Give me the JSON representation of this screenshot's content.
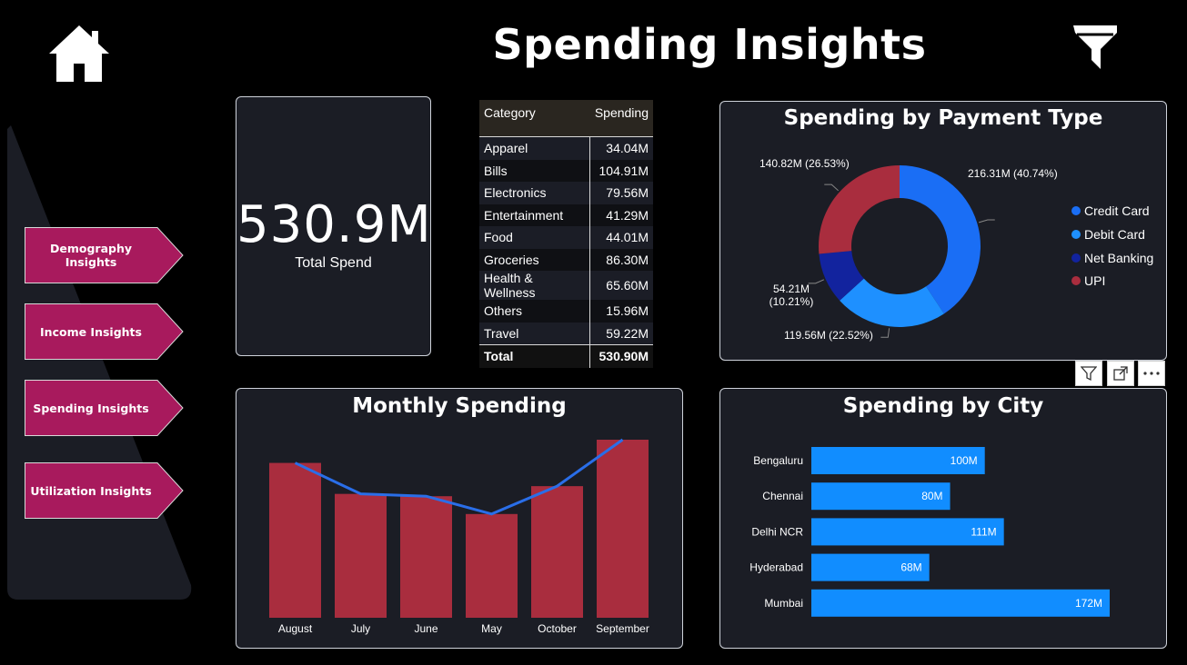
{
  "page": {
    "title": "Spending Insights"
  },
  "icons": {
    "home": "home-icon",
    "filter": "filter-icon",
    "visual_filter": "funnel-icon",
    "focus": "focus-mode-icon",
    "more": "more-options-icon"
  },
  "nav": {
    "items": [
      {
        "label": "Demography Insights"
      },
      {
        "label": "Income Insights"
      },
      {
        "label": "Spending Insights"
      },
      {
        "label": "Utilization Insights"
      }
    ]
  },
  "kpi": {
    "value": "530.9M",
    "label": "Total Spend"
  },
  "category_table": {
    "headers": [
      "Category",
      "Spending"
    ],
    "rows": [
      {
        "category": "Apparel",
        "spending": "34.04M"
      },
      {
        "category": "Bills",
        "spending": "104.91M"
      },
      {
        "category": "Electronics",
        "spending": "79.56M"
      },
      {
        "category": "Entertainment",
        "spending": "41.29M"
      },
      {
        "category": "Food",
        "spending": "44.01M"
      },
      {
        "category": "Groceries",
        "spending": "86.30M"
      },
      {
        "category": "Health & Wellness",
        "spending": "65.60M"
      },
      {
        "category": "Others",
        "spending": "15.96M"
      },
      {
        "category": "Travel",
        "spending": "59.22M"
      }
    ],
    "total": {
      "category": "Total",
      "spending": "530.90M"
    }
  },
  "colors": {
    "bar_red": "#a92d3e",
    "line_blue": "#2a6ee8",
    "city_bar": "#118dff",
    "accent_nav": "#a81a5d"
  },
  "chart_data": [
    {
      "type": "pie",
      "title": "Spending by Payment Type",
      "legend_position": "right",
      "slices": [
        {
          "name": "Credit Card",
          "value": 216.31,
          "label": "216.31M (40.74%)",
          "color": "#1a6ef5"
        },
        {
          "name": "Debit Card",
          "value": 119.56,
          "label": "119.56M (22.52%)",
          "color": "#1e90ff"
        },
        {
          "name": "Net Banking",
          "value": 54.21,
          "label": "54.21M\n(10.21%)",
          "color": "#12239e"
        },
        {
          "name": "UPI",
          "value": 140.82,
          "label": "140.82M (26.53%)",
          "color": "#a92d3e"
        }
      ]
    },
    {
      "type": "bar",
      "title": "Monthly Spending",
      "categories": [
        "August",
        "July",
        "June",
        "May",
        "October",
        "September"
      ],
      "values": [
        100,
        80,
        78.5,
        67,
        85,
        115
      ],
      "line_values": [
        100,
        80,
        78.5,
        67,
        85,
        115
      ],
      "ylim": [
        0,
        115
      ],
      "grid": false
    },
    {
      "type": "bar",
      "orientation": "horizontal",
      "title": "Spending by City",
      "categories": [
        "Bengaluru",
        "Chennai",
        "Delhi NCR",
        "Hyderabad",
        "Mumbai"
      ],
      "values": [
        100,
        80,
        111,
        68,
        172
      ],
      "data_labels": [
        "100M",
        "80M",
        "111M",
        "68M",
        "172M"
      ],
      "xlim": [
        0,
        172
      ],
      "grid": false
    }
  ]
}
